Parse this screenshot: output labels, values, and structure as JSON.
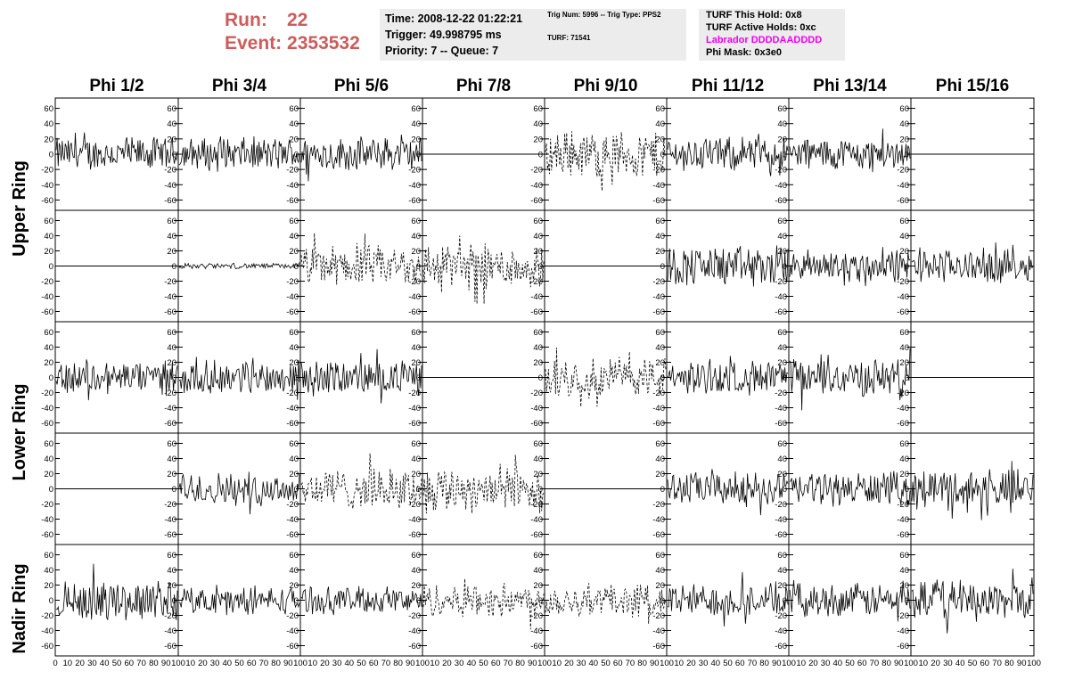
{
  "header": {
    "run_label": "Run:",
    "run_value": "22",
    "event_label": "Event:",
    "event_value": "2353532",
    "time_line": "Time: 2008-12-22 01:22:21",
    "trigger_line": "Trigger: 49.998795 ms",
    "priority_line": "Priority: 7 -- Queue: 7",
    "trig_line": "Trig Num: 5996 -- Trig Type: PPS2",
    "turf_line": "TURF: 71541",
    "turf_hold_line": "TURF This Hold: 0x8",
    "turf_active_line": "TURF Active Holds: 0xc",
    "labrador_line": "Labrador DDDDAADDDD",
    "phi_mask_line": "Phi Mask: 0x3e0"
  },
  "columns": [
    "Phi 1/2",
    "Phi 3/4",
    "Phi 5/6",
    "Phi 7/8",
    "Phi 9/10",
    "Phi 11/12",
    "Phi 13/14",
    "Phi 15/16"
  ],
  "rings": [
    "Upper Ring",
    "Lower Ring",
    "Nadir Ring"
  ],
  "colors": {
    "run_text": "#cd5c5c",
    "labrador_text": "#ee00ee",
    "panel_bg": "#ececec",
    "trace": "#000000"
  },
  "chart_data": {
    "type": "line",
    "rows": 5,
    "cols": 8,
    "ylim": [
      -70,
      70
    ],
    "yticks": [
      -60,
      -40,
      -20,
      0,
      20,
      40,
      60
    ],
    "xlim": [
      0,
      100
    ],
    "xticks": [
      0,
      10,
      20,
      30,
      40,
      50,
      60,
      70,
      80,
      90,
      100
    ],
    "traces": [
      [
        "noise-25",
        "noise-25",
        "noise-25",
        "flat",
        "dashed-35",
        "noise-25",
        "noise-25",
        "flat"
      ],
      [
        "flat",
        "small-4",
        "dashed-30",
        "dashed-35",
        "flat",
        "noise-30",
        "noise-25",
        "noise-25"
      ],
      [
        "noise-25",
        "noise-25",
        "noise-25",
        "flat",
        "dashed-30",
        "noise-25",
        "noise-28",
        "flat"
      ],
      [
        "flat",
        "noise-25",
        "dashed-30",
        "dashed-35",
        "flat",
        "noise-25",
        "noise-25",
        "noise-30"
      ],
      [
        "noise-30",
        "noise-20",
        "noise-20",
        "dashed-25",
        "dashed-25",
        "noise-25",
        "noise-25",
        "noise-30"
      ]
    ]
  }
}
